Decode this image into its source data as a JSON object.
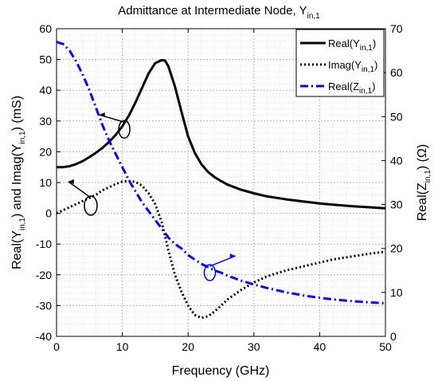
{
  "chart_data": {
    "type": "line",
    "title": {
      "main": "Admittance at Intermediate Node, Y",
      "sub": "in,1"
    },
    "xlabel": "Frequency (GHz)",
    "ylabel_left": {
      "p1": "Real(Y",
      "s1": "in,1",
      "p2": ") and Imag(Y",
      "s2": "in,1",
      "p3": ") (mS)"
    },
    "ylabel_right": {
      "p1": "Real(Z",
      "s1": "in,1",
      "p2": ") (Ω)"
    },
    "xlim": [
      0,
      50
    ],
    "ylim_left": [
      -40,
      60
    ],
    "ylim_right": [
      0,
      70
    ],
    "x_ticks": [
      0,
      10,
      20,
      30,
      40,
      50
    ],
    "y_ticks_left": [
      -40,
      -30,
      -20,
      -10,
      0,
      10,
      20,
      30,
      40,
      50,
      60
    ],
    "y_ticks_right": [
      0,
      10,
      20,
      30,
      40,
      50,
      60,
      70
    ],
    "grid": true,
    "legend_position": "top-right",
    "series": [
      {
        "name": {
          "p1": "Real(Y",
          "s1": "in,1",
          "p2": ")"
        },
        "axis": "left",
        "color": "#000000",
        "style": "solid",
        "x": [
          0,
          1,
          2,
          3,
          4,
          5,
          6,
          7,
          8,
          9,
          10,
          11,
          12,
          13,
          14,
          15,
          16,
          16.5,
          17,
          18,
          19,
          20,
          21,
          22,
          23,
          24,
          25,
          26,
          28,
          30,
          32,
          35,
          38,
          40,
          42,
          45,
          48,
          50
        ],
        "values": [
          15,
          15,
          15.3,
          16,
          17,
          18.3,
          19.7,
          21.3,
          23.2,
          25.5,
          28.3,
          31.8,
          36,
          40.8,
          45.5,
          48.8,
          49.8,
          49.6,
          47.8,
          41.2,
          33,
          25,
          19.7,
          16,
          13.5,
          11.8,
          10.5,
          9.3,
          7.7,
          6.5,
          5.5,
          4.5,
          3.7,
          3.2,
          2.8,
          2.3,
          1.9,
          1.6
        ]
      },
      {
        "name": {
          "p1": "Imag(Y",
          "s1": "in,1",
          "p2": ")"
        },
        "axis": "left",
        "color": "#000000",
        "style": "dotted",
        "x": [
          0,
          1,
          2,
          3,
          4,
          5,
          6,
          7,
          8,
          9,
          10,
          11,
          12,
          13,
          14,
          15,
          16,
          17,
          18,
          19,
          20,
          21,
          22,
          23,
          24,
          25,
          26,
          28,
          30,
          32,
          35,
          38,
          40,
          42,
          45,
          48,
          50
        ],
        "values": [
          0,
          1,
          2,
          3,
          4,
          5,
          6,
          7.5,
          8.5,
          9.5,
          10.3,
          10.5,
          10.2,
          9,
          6.5,
          3,
          -3,
          -12,
          -20,
          -25.5,
          -30,
          -33,
          -34,
          -33.5,
          -32,
          -30,
          -28,
          -25,
          -22.5,
          -20.5,
          -18.5,
          -17,
          -16,
          -15,
          -14,
          -13,
          -12.5
        ]
      },
      {
        "name": {
          "p1": "Real(Z",
          "s1": "in,1",
          "p2": ")"
        },
        "axis": "right",
        "color": "#0000ff",
        "style": "dashdot",
        "x": [
          0,
          1,
          2,
          3,
          4,
          5,
          6,
          7,
          8,
          9,
          10,
          11,
          12,
          13,
          14,
          15,
          16,
          17,
          18,
          19,
          20,
          21,
          22,
          23,
          24,
          25,
          26,
          28,
          30,
          32,
          35,
          38,
          40,
          42,
          45,
          48,
          50
        ],
        "values": [
          67,
          66.5,
          65,
          62.5,
          59.5,
          56,
          52,
          48,
          44.5,
          41.5,
          38.5,
          35.5,
          33,
          30.5,
          28.5,
          26.5,
          24.5,
          22.5,
          21,
          20,
          18.5,
          17.5,
          16.5,
          15.8,
          15,
          14.5,
          13.8,
          12.7,
          11.8,
          11,
          10,
          9.2,
          8.8,
          8.4,
          8,
          7.7,
          7.5
        ]
      }
    ]
  }
}
